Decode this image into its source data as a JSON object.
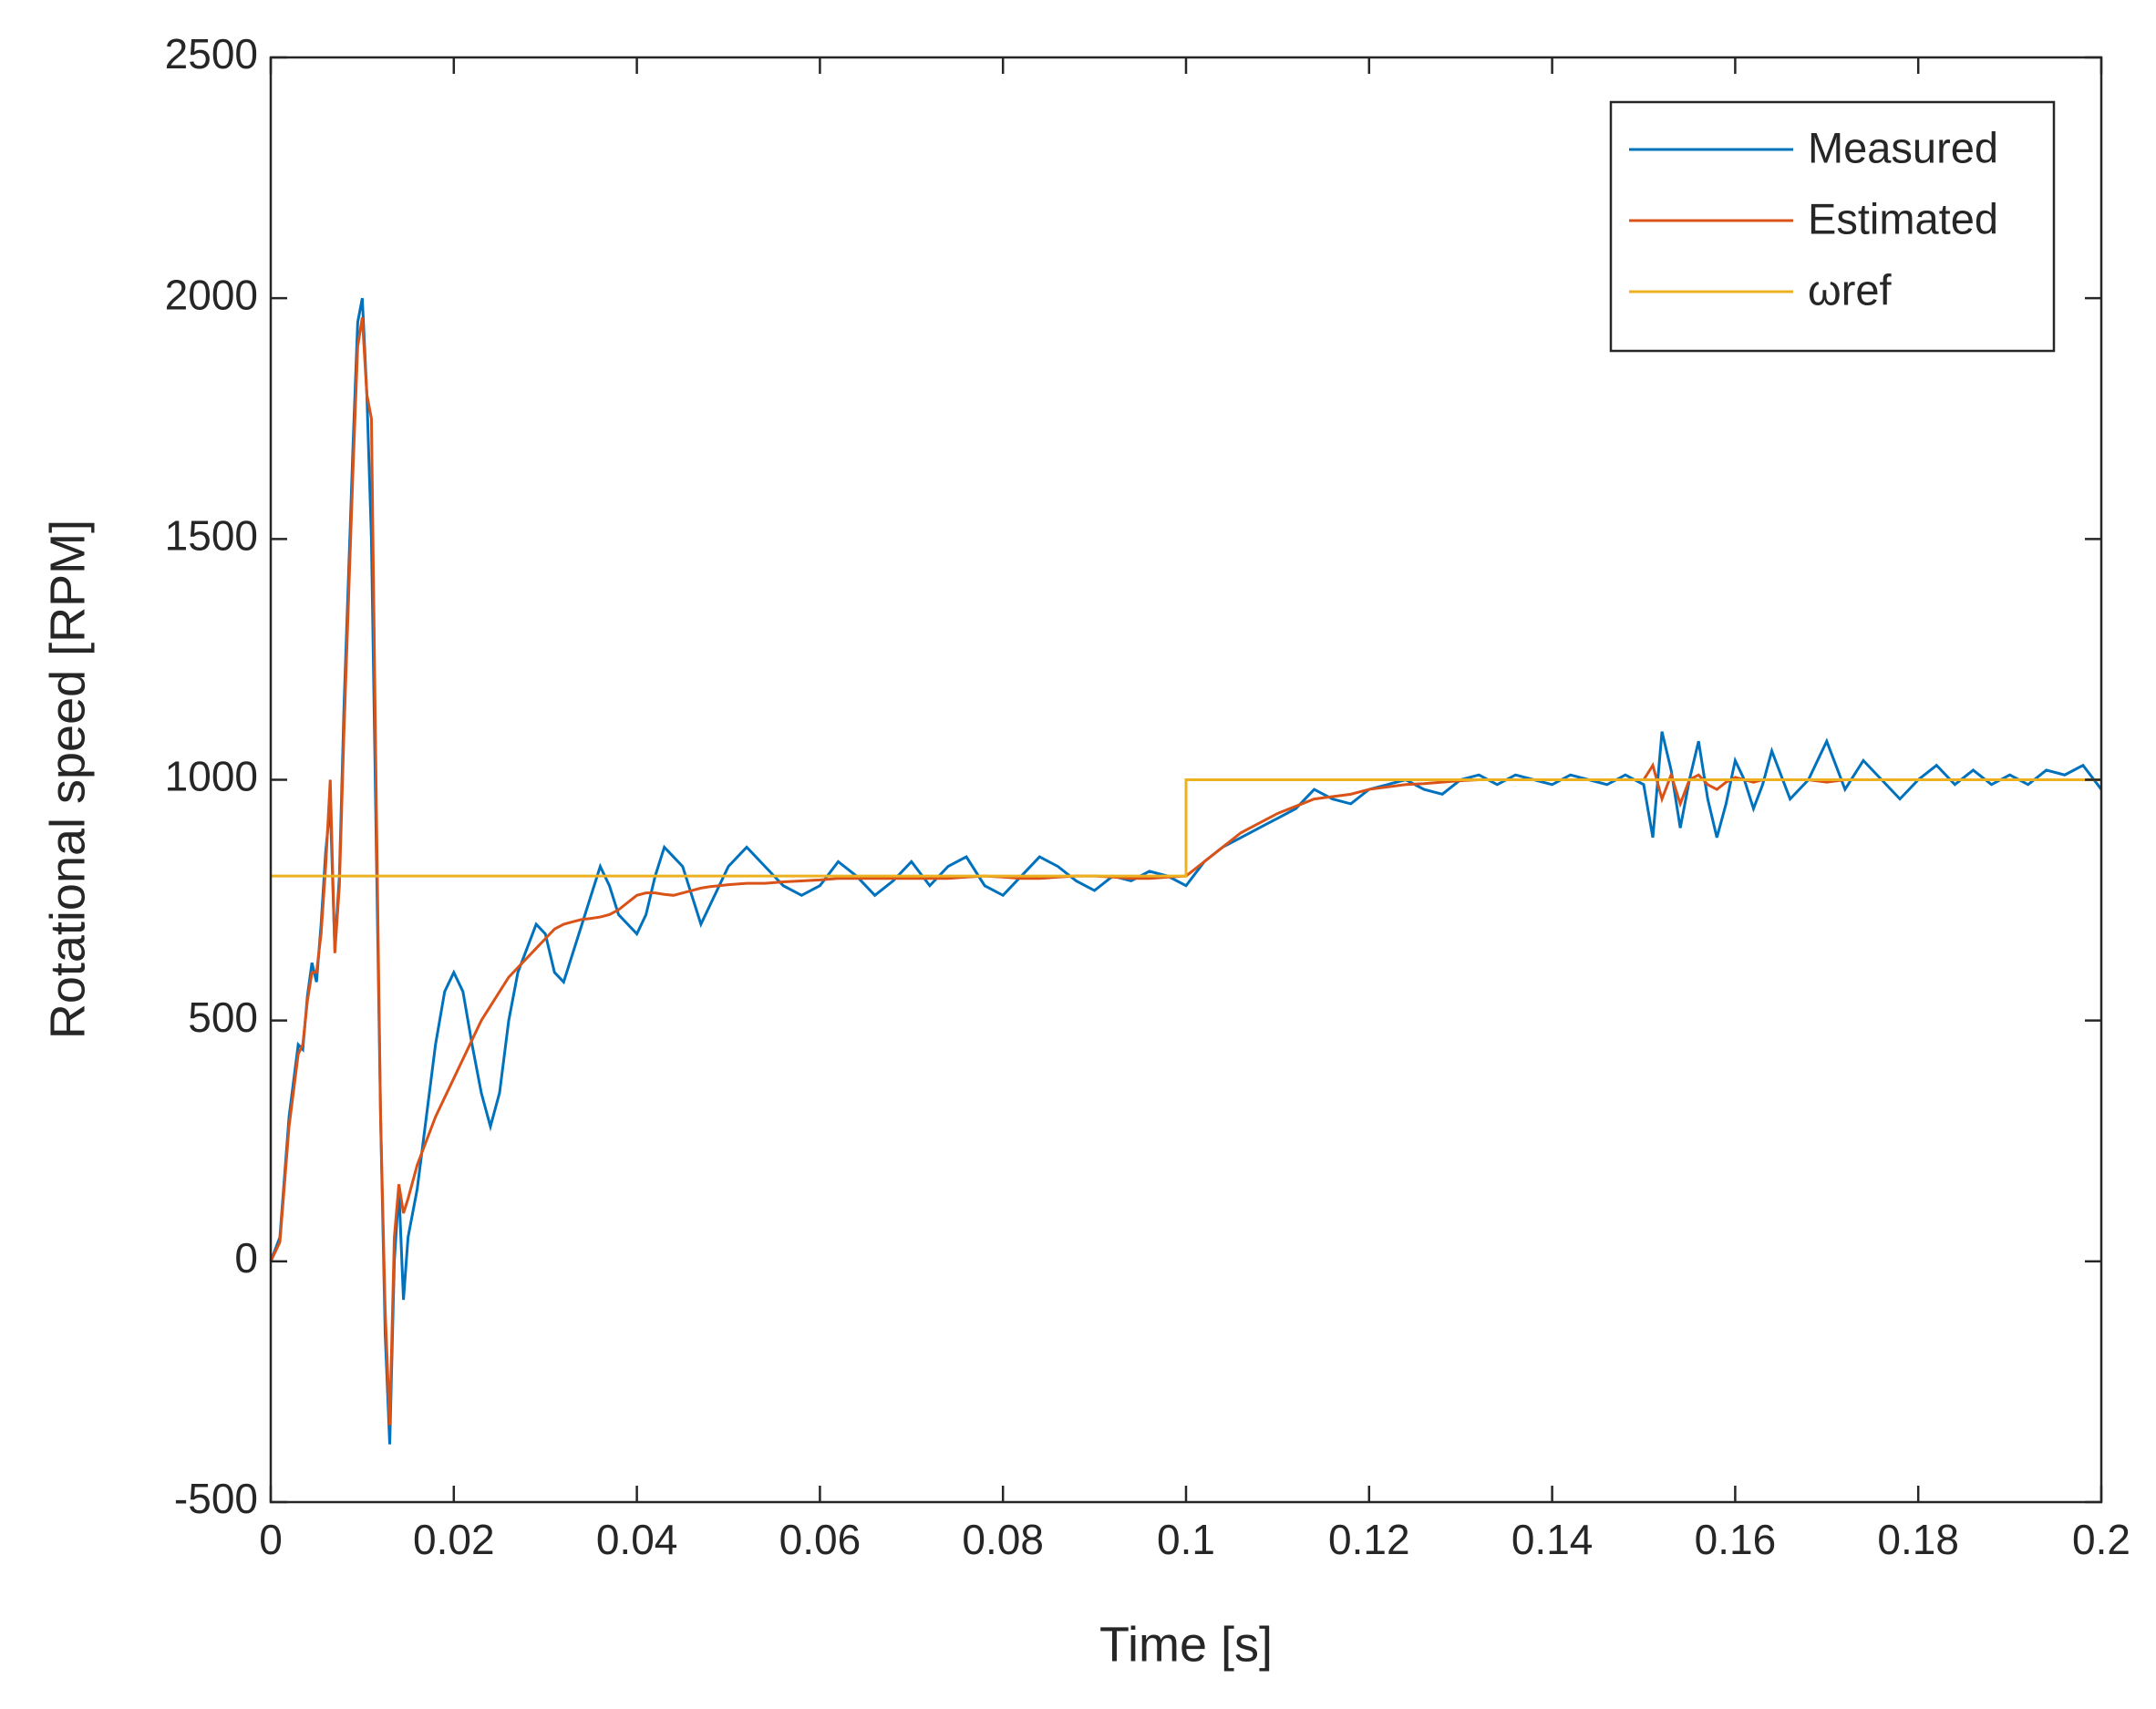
{
  "chart_data": {
    "type": "line",
    "xlabel": "Time [s]",
    "ylabel": "Rotational speed [RPM]",
    "xlim": [
      0,
      0.2
    ],
    "ylim": [
      -500,
      2500
    ],
    "xticks": [
      0,
      0.02,
      0.04,
      0.06,
      0.08,
      0.1,
      0.12,
      0.14,
      0.16,
      0.18,
      0.2
    ],
    "yticks": [
      -500,
      0,
      500,
      1000,
      1500,
      2000,
      2500
    ],
    "legend": "upper right",
    "series": [
      {
        "name": "Measured",
        "color": "#0072BD",
        "x": [
          0,
          0.001,
          0.002,
          0.003,
          0.0035,
          0.004,
          0.0045,
          0.005,
          0.0055,
          0.006,
          0.0065,
          0.007,
          0.0075,
          0.008,
          0.009,
          0.0095,
          0.01,
          0.0105,
          0.011,
          0.0115,
          0.012,
          0.0125,
          0.013,
          0.0135,
          0.014,
          0.0145,
          0.015,
          0.016,
          0.017,
          0.018,
          0.019,
          0.02,
          0.021,
          0.022,
          0.023,
          0.024,
          0.025,
          0.026,
          0.027,
          0.028,
          0.029,
          0.03,
          0.031,
          0.032,
          0.033,
          0.034,
          0.035,
          0.036,
          0.037,
          0.038,
          0.039,
          0.04,
          0.041,
          0.042,
          0.043,
          0.044,
          0.045,
          0.046,
          0.047,
          0.048,
          0.049,
          0.05,
          0.052,
          0.054,
          0.056,
          0.058,
          0.06,
          0.062,
          0.064,
          0.066,
          0.068,
          0.07,
          0.072,
          0.074,
          0.076,
          0.078,
          0.08,
          0.082,
          0.084,
          0.086,
          0.088,
          0.09,
          0.092,
          0.094,
          0.096,
          0.098,
          0.1,
          0.102,
          0.104,
          0.106,
          0.108,
          0.11,
          0.112,
          0.114,
          0.116,
          0.118,
          0.12,
          0.122,
          0.124,
          0.126,
          0.128,
          0.13,
          0.132,
          0.134,
          0.136,
          0.138,
          0.14,
          0.142,
          0.144,
          0.146,
          0.148,
          0.15,
          0.151,
          0.152,
          0.153,
          0.154,
          0.155,
          0.156,
          0.157,
          0.158,
          0.159,
          0.16,
          0.161,
          0.162,
          0.163,
          0.164,
          0.166,
          0.168,
          0.17,
          0.172,
          0.174,
          0.176,
          0.178,
          0.18,
          0.182,
          0.184,
          0.186,
          0.188,
          0.19,
          0.192,
          0.194,
          0.196,
          0.198,
          0.2
        ],
        "values": [
          0,
          50,
          300,
          450,
          440,
          550,
          620,
          580,
          700,
          850,
          950,
          650,
          800,
          1150,
          1700,
          1950,
          2000,
          1800,
          1500,
          900,
          300,
          -150,
          -380,
          0,
          150,
          -80,
          50,
          150,
          300,
          450,
          560,
          600,
          560,
          450,
          350,
          280,
          350,
          500,
          600,
          650,
          700,
          680,
          600,
          580,
          640,
          700,
          760,
          820,
          780,
          720,
          700,
          680,
          720,
          800,
          860,
          840,
          820,
          760,
          700,
          740,
          780,
          820,
          860,
          820,
          780,
          760,
          780,
          830,
          800,
          760,
          790,
          830,
          780,
          820,
          840,
          780,
          760,
          800,
          840,
          820,
          790,
          770,
          800,
          790,
          810,
          800,
          780,
          830,
          860,
          880,
          900,
          920,
          940,
          980,
          960,
          950,
          980,
          990,
          1000,
          980,
          970,
          1000,
          1010,
          990,
          1010,
          1000,
          990,
          1010,
          1000,
          990,
          1010,
          990,
          880,
          1100,
          1020,
          900,
          1000,
          1080,
          960,
          880,
          950,
          1040,
          1000,
          940,
          990,
          1060,
          960,
          1000,
          1080,
          980,
          1040,
          1000,
          960,
          1000,
          1030,
          990,
          1020,
          990,
          1010,
          990,
          1020,
          1010,
          1030,
          980
        ]
      },
      {
        "name": "Estimated",
        "color": "#D95319",
        "x": [
          0,
          0.001,
          0.002,
          0.003,
          0.0035,
          0.004,
          0.0045,
          0.005,
          0.0055,
          0.006,
          0.0065,
          0.007,
          0.0075,
          0.008,
          0.009,
          0.0095,
          0.01,
          0.0105,
          0.011,
          0.0115,
          0.012,
          0.0125,
          0.013,
          0.0135,
          0.014,
          0.0145,
          0.015,
          0.016,
          0.017,
          0.018,
          0.019,
          0.02,
          0.021,
          0.022,
          0.023,
          0.024,
          0.025,
          0.026,
          0.027,
          0.028,
          0.029,
          0.03,
          0.031,
          0.032,
          0.033,
          0.034,
          0.035,
          0.036,
          0.037,
          0.038,
          0.039,
          0.04,
          0.041,
          0.042,
          0.043,
          0.044,
          0.045,
          0.046,
          0.047,
          0.048,
          0.049,
          0.05,
          0.052,
          0.054,
          0.056,
          0.058,
          0.06,
          0.062,
          0.064,
          0.066,
          0.068,
          0.07,
          0.072,
          0.074,
          0.076,
          0.078,
          0.08,
          0.082,
          0.084,
          0.086,
          0.088,
          0.09,
          0.092,
          0.094,
          0.096,
          0.098,
          0.1,
          0.102,
          0.104,
          0.106,
          0.108,
          0.11,
          0.112,
          0.114,
          0.116,
          0.118,
          0.12,
          0.122,
          0.124,
          0.126,
          0.128,
          0.13,
          0.132,
          0.134,
          0.136,
          0.138,
          0.14,
          0.142,
          0.144,
          0.146,
          0.148,
          0.15,
          0.151,
          0.152,
          0.153,
          0.154,
          0.155,
          0.156,
          0.157,
          0.158,
          0.159,
          0.16,
          0.161,
          0.162,
          0.163,
          0.164,
          0.166,
          0.168,
          0.17,
          0.172,
          0.174,
          0.176,
          0.178,
          0.18,
          0.182,
          0.184,
          0.186,
          0.188,
          0.19,
          0.192,
          0.194,
          0.196,
          0.198,
          0.2
        ],
        "values": [
          0,
          40,
          280,
          430,
          450,
          540,
          600,
          600,
          680,
          820,
          1000,
          640,
          780,
          1100,
          1650,
          1900,
          1960,
          1800,
          1750,
          1000,
          300,
          -100,
          -340,
          50,
          160,
          100,
          130,
          200,
          250,
          300,
          340,
          380,
          420,
          460,
          500,
          530,
          560,
          590,
          610,
          630,
          650,
          670,
          690,
          700,
          705,
          710,
          712,
          715,
          720,
          730,
          745,
          760,
          765,
          765,
          762,
          760,
          765,
          770,
          775,
          778,
          780,
          782,
          785,
          785,
          788,
          790,
          792,
          795,
          795,
          795,
          795,
          795,
          795,
          795,
          798,
          800,
          798,
          795,
          795,
          798,
          800,
          800,
          798,
          795,
          795,
          798,
          800,
          830,
          860,
          890,
          910,
          930,
          945,
          960,
          965,
          970,
          980,
          985,
          990,
          992,
          995,
          998,
          1000,
          1000,
          1000,
          1000,
          1000,
          1000,
          1000,
          1000,
          1000,
          1000,
          1030,
          960,
          1010,
          950,
          1000,
          1010,
          990,
          980,
          995,
          1005,
          1000,
          995,
          1000,
          1000,
          1000,
          1000,
          995,
          1000,
          1000,
          1000,
          1000,
          1000,
          1000,
          1000,
          1000,
          1000,
          1000,
          1000,
          1000,
          1000,
          1000,
          1000
        ]
      },
      {
        "name": "ωref",
        "color": "#EDB120",
        "x": [
          0,
          0.1,
          0.1,
          0.2
        ],
        "values": [
          800,
          800,
          1000,
          1000
        ]
      }
    ]
  }
}
